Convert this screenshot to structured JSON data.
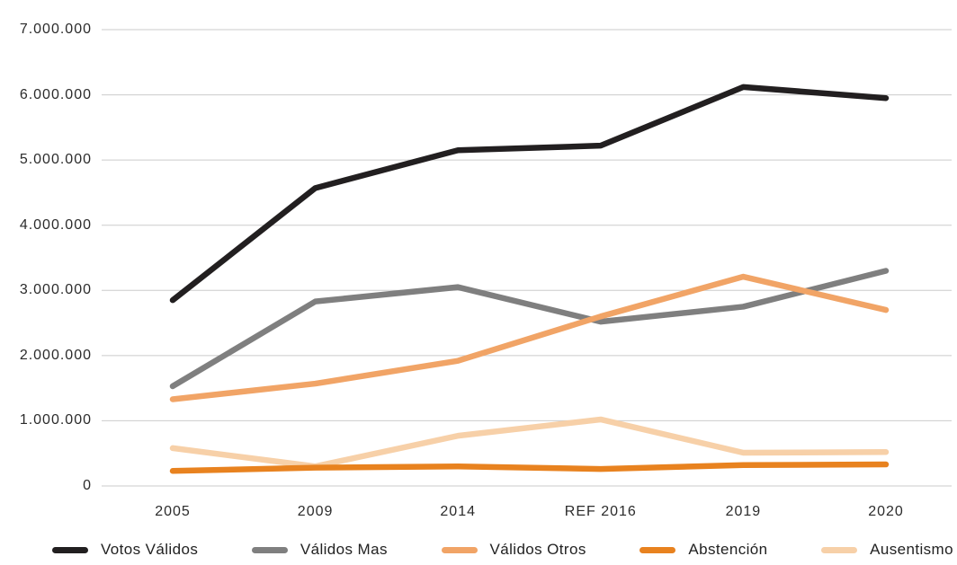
{
  "chart_data": {
    "type": "line",
    "title": "",
    "categories": [
      "2005",
      "2009",
      "2014",
      "REF 2016",
      "2019",
      "2020"
    ],
    "series": [
      {
        "name": "Votos Válidos",
        "color": "#221f20",
        "values": [
          2850000,
          4570000,
          5150000,
          5220000,
          6120000,
          5950000
        ]
      },
      {
        "name": "Válidos Mas",
        "color": "#7f7f7f",
        "values": [
          1530000,
          2830000,
          3050000,
          2520000,
          2750000,
          3300000
        ]
      },
      {
        "name": "Válidos Otros",
        "color": "#f1a466",
        "values": [
          1330000,
          1570000,
          1920000,
          2600000,
          3210000,
          2700000
        ]
      },
      {
        "name": "Abstención",
        "color": "#e8821f",
        "values": [
          230000,
          280000,
          300000,
          260000,
          320000,
          330000
        ]
      },
      {
        "name": "Ausentismo",
        "color": "#f7d0a8",
        "values": [
          580000,
          300000,
          770000,
          1020000,
          510000,
          520000
        ]
      }
    ],
    "xlabel": "",
    "ylabel": "",
    "ylim": [
      0,
      7000000
    ],
    "y_tick_step": 1000000,
    "y_tick_labels": [
      "0",
      "1.000.000",
      "2.000.000",
      "3.000.000",
      "4.000.000",
      "5.000.000",
      "6.000.000",
      "7.000.000"
    ],
    "grid": "horizontal",
    "gridline_color": "#cbcbcb",
    "line_width": 6.5,
    "legend_position": "bottom",
    "draw_order": [
      4,
      1,
      2,
      3,
      0
    ]
  }
}
